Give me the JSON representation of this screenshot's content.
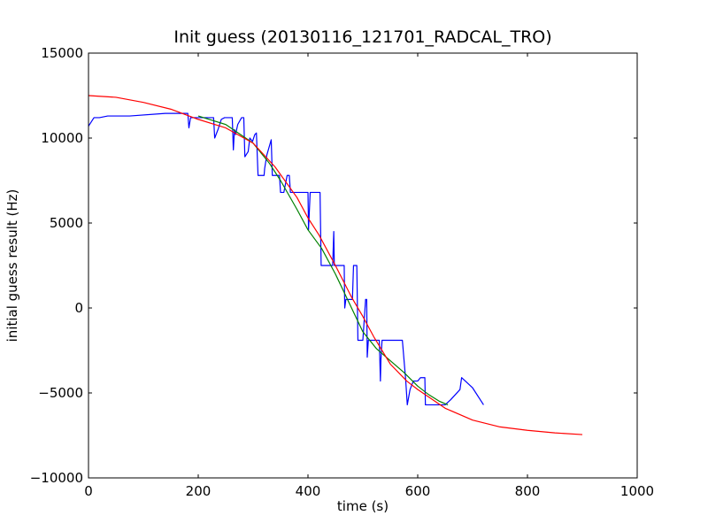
{
  "chart_data": {
    "type": "line",
    "title": "Init guess (20130116_121701_RADCAL_TRO)",
    "xlabel": "time (s)",
    "ylabel": "initial guess result (Hz)",
    "xlim": [
      0,
      1000
    ],
    "ylim": [
      -10000,
      15000
    ],
    "x_ticks": [
      0,
      200,
      400,
      600,
      800,
      1000
    ],
    "y_ticks": [
      -10000,
      -5000,
      0,
      5000,
      10000,
      15000
    ],
    "grid": false,
    "legend": "none",
    "series": [
      {
        "color": "#0000ff",
        "x": [
          0,
          10,
          20,
          35,
          75,
          140,
          181,
          183,
          186,
          189,
          225,
          226,
          228,
          230,
          236,
          242,
          248,
          254,
          262,
          264,
          266,
          268,
          272,
          279,
          283,
          285,
          287,
          291,
          294,
          299,
          303,
          306,
          309,
          311,
          320,
          321,
          325,
          333,
          335,
          338,
          340,
          343,
          348,
          350,
          355,
          356,
          362,
          366,
          368,
          372,
          381,
          383,
          385,
          390,
          400,
          401,
          404,
          410,
          418,
          419,
          422,
          424,
          440,
          443,
          445,
          447,
          448,
          450,
          453,
          465,
          466,
          467,
          469,
          472,
          477,
          481,
          483,
          486,
          489,
          491,
          492,
          493,
          495,
          500,
          505,
          507,
          508,
          510,
          515,
          520,
          525,
          530,
          532,
          533,
          535,
          545,
          550,
          555,
          560,
          572,
          578,
          581,
          586,
          592,
          600,
          605,
          613,
          614,
          617,
          622,
          628,
          634,
          640,
          650,
          660,
          677,
          680,
          700,
          720
        ],
        "y": [
          10700,
          11200,
          11200,
          11300,
          11300,
          11450,
          11450,
          10600,
          11200,
          11200,
          11200,
          11200,
          11200,
          10000,
          10500,
          11100,
          11200,
          11200,
          11200,
          9300,
          10500,
          10200,
          10800,
          11200,
          11200,
          8900,
          9000,
          9200,
          10000,
          9800,
          10200,
          10300,
          7800,
          7800,
          7800,
          8200,
          9000,
          9900,
          7800,
          7800,
          7800,
          7800,
          7800,
          6800,
          6800,
          6800,
          7800,
          7800,
          6800,
          6800,
          6800,
          6800,
          6800,
          6800,
          6800,
          4600,
          6800,
          6800,
          6800,
          6800,
          6800,
          2500,
          2500,
          2500,
          2500,
          4500,
          2500,
          2500,
          2500,
          2500,
          2500,
          0,
          500,
          500,
          500,
          500,
          2500,
          2500,
          2500,
          -1900,
          -1900,
          -1900,
          -1900,
          -1900,
          500,
          500,
          -2900,
          -1900,
          -1900,
          -1900,
          -1900,
          -1900,
          -4300,
          -3000,
          -1900,
          -1900,
          -1900,
          -1900,
          -1900,
          -1900,
          -4200,
          -5700,
          -4800,
          -4300,
          -4300,
          -4100,
          -4100,
          -5700,
          -5700,
          -5700,
          -5700,
          -5700,
          -5700,
          -5700,
          -5400,
          -4800,
          -4100,
          -4700,
          -5700
        ]
      },
      {
        "color": "#008000",
        "x": [
          200,
          250,
          300,
          330,
          350,
          380,
          400,
          425,
          450,
          475,
          500,
          525,
          550,
          575,
          600,
          620,
          640,
          655
        ],
        "y": [
          11300,
          10800,
          9700,
          8500,
          7500,
          5800,
          4600,
          3500,
          2000,
          300,
          -1400,
          -2400,
          -3100,
          -3800,
          -4600,
          -5100,
          -5500,
          -5700
        ]
      },
      {
        "color": "#ff0000",
        "x": [
          0,
          50,
          100,
          150,
          200,
          250,
          300,
          340,
          380,
          400,
          420,
          450,
          480,
          500,
          520,
          550,
          580,
          600,
          650,
          700,
          750,
          800,
          850,
          900
        ],
        "y": [
          12500,
          12400,
          12100,
          11700,
          11100,
          10600,
          9700,
          8300,
          6500,
          5300,
          4300,
          2500,
          600,
          -500,
          -1700,
          -3300,
          -4300,
          -4800,
          -5900,
          -6600,
          -7000,
          -7200,
          -7350,
          -7450
        ]
      }
    ]
  }
}
